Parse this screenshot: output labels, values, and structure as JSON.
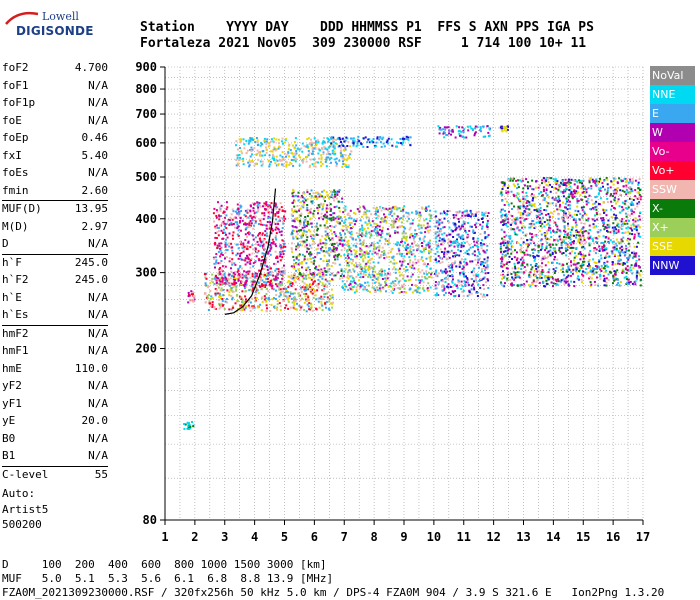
{
  "logo": {
    "line1": "Lowell",
    "line2": "DIGISONDE"
  },
  "header": {
    "labels": "Station    YYYY DAY    DDD HHMMSS P1  FFS S AXN PPS IGA PS",
    "values": "Fortaleza 2021 Nov05  309 230000 RSF     1 714 100 10+ 11"
  },
  "params": {
    "group1": [
      {
        "k": "foF2",
        "v": "4.700"
      },
      {
        "k": "foF1",
        "v": "N/A"
      },
      {
        "k": "foF1p",
        "v": "N/A"
      },
      {
        "k": "foE",
        "v": "N/A"
      },
      {
        "k": "foEp",
        "v": "0.46"
      },
      {
        "k": "fxI",
        "v": "5.40"
      },
      {
        "k": "foEs",
        "v": "N/A"
      },
      {
        "k": "fmin",
        "v": "2.60"
      }
    ],
    "group2": [
      {
        "k": "MUF(D)",
        "v": "13.95"
      },
      {
        "k": "M(D)",
        "v": "2.97"
      },
      {
        "k": "D",
        "v": "N/A"
      }
    ],
    "group3": [
      {
        "k": "h`F",
        "v": "245.0"
      },
      {
        "k": "h`F2",
        "v": "245.0"
      },
      {
        "k": "h`E",
        "v": "N/A"
      },
      {
        "k": "h`Es",
        "v": "N/A"
      }
    ],
    "group4": [
      {
        "k": "hmF2",
        "v": "N/A"
      },
      {
        "k": "hmF1",
        "v": "N/A"
      },
      {
        "k": "hmE",
        "v": "110.0"
      },
      {
        "k": "yF2",
        "v": "N/A"
      },
      {
        "k": "yF1",
        "v": "N/A"
      },
      {
        "k": "yE",
        "v": "20.0"
      },
      {
        "k": "B0",
        "v": "N/A"
      },
      {
        "k": "B1",
        "v": "N/A"
      }
    ],
    "group5": [
      {
        "k": "C-level",
        "v": "55"
      }
    ]
  },
  "auto": {
    "line1": "Auto:",
    "line2": "Artist5",
    "line3": "500200"
  },
  "legend": [
    {
      "label": "NoVal",
      "color": "#8c8c8c"
    },
    {
      "label": "NNE",
      "color": "#00d9f2"
    },
    {
      "label": "E",
      "color": "#3aa8f0"
    },
    {
      "label": "W",
      "color": "#b000b0"
    },
    {
      "label": "Vo-",
      "color": "#e8008c"
    },
    {
      "label": "Vo+",
      "color": "#ff0030"
    },
    {
      "label": "SSW",
      "color": "#f2b6b0"
    },
    {
      "label": "X-",
      "color": "#0a7a0a"
    },
    {
      "label": "X+",
      "color": "#9ccf5a"
    },
    {
      "label": "SSE",
      "color": "#e6d800"
    },
    {
      "label": "NNW",
      "color": "#2010d0"
    }
  ],
  "chart_data": {
    "type": "scatter",
    "title": "",
    "xlabel": "",
    "ylabel": "",
    "xlim": [
      1,
      17
    ],
    "ylim": [
      80,
      900
    ],
    "x_ticks": [
      "1",
      "2",
      "3",
      "4",
      "5",
      "6",
      "7",
      "8",
      "9",
      "10",
      "11",
      "12",
      "13",
      "14",
      "15",
      "16",
      "17"
    ],
    "y_ticks": [
      "80",
      "200",
      "300",
      "400",
      "500",
      "600",
      "700",
      "800",
      "900"
    ],
    "log_y": true,
    "grid": true,
    "legend_position": "right",
    "regions": [
      {
        "f": [
          1.7,
          1.95
        ],
        "h": [
          255,
          275
        ],
        "colors": [
          "SSW",
          "Vo+",
          "W"
        ]
      },
      {
        "f": [
          2.3,
          6.6
        ],
        "h": [
          245,
          300
        ],
        "colors": [
          "Vo+",
          "SSW",
          "E",
          "SSE",
          "X+"
        ]
      },
      {
        "f": [
          2.6,
          5.0
        ],
        "h": [
          280,
          440
        ],
        "colors": [
          "W",
          "Vo-",
          "Vo+",
          "SSW",
          "E"
        ]
      },
      {
        "f": [
          5.2,
          6.9
        ],
        "h": [
          290,
          470
        ],
        "colors": [
          "W",
          "SSW",
          "SSE",
          "X-",
          "E"
        ]
      },
      {
        "f": [
          6.9,
          9.9
        ],
        "h": [
          270,
          430
        ],
        "colors": [
          "SSE",
          "E",
          "W",
          "NNE",
          "SSW",
          "X+"
        ]
      },
      {
        "f": [
          10.0,
          11.8
        ],
        "h": [
          265,
          420
        ],
        "colors": [
          "E",
          "NNE",
          "NNW",
          "SSW",
          "W"
        ]
      },
      {
        "f": [
          12.2,
          16.9
        ],
        "h": [
          280,
          500
        ],
        "colors": [
          "NNW",
          "E",
          "NNE",
          "W",
          "SSW",
          "Vo-",
          "X-",
          "SSE"
        ]
      },
      {
        "f": [
          3.3,
          7.2
        ],
        "h": [
          530,
          620
        ],
        "colors": [
          "SSE",
          "SSW",
          "E",
          "NNE"
        ]
      },
      {
        "f": [
          6.5,
          9.2
        ],
        "h": [
          590,
          625
        ],
        "colors": [
          "NNW",
          "E",
          "NNE"
        ]
      },
      {
        "f": [
          10.1,
          11.9
        ],
        "h": [
          620,
          660
        ],
        "colors": [
          "NNE",
          "E",
          "W"
        ]
      },
      {
        "f": [
          12.2,
          12.45
        ],
        "h": [
          640,
          660
        ],
        "colors": [
          "SSE",
          "NNW"
        ]
      },
      {
        "f": [
          1.6,
          1.95
        ],
        "h": [
          130,
          136
        ],
        "colors": [
          "X-",
          "NNE"
        ]
      }
    ],
    "trace": {
      "f": [
        3.0,
        3.3,
        3.6,
        3.9,
        4.2,
        4.45,
        4.6,
        4.7
      ],
      "h": [
        240,
        242,
        250,
        265,
        300,
        345,
        395,
        470
      ]
    },
    "series_names": [
      "NoVal",
      "NNE",
      "E",
      "W",
      "Vo-",
      "Vo+",
      "SSW",
      "X-",
      "X+",
      "SSE",
      "NNW"
    ]
  },
  "footer": {
    "line1": "D     100  200  400  600  800 1000 1500 3000 [km]",
    "line2": "MUF   5.0  5.1  5.3  5.6  6.1  6.8  8.8 13.9 [MHz]",
    "line3": "FZA0M_2021309230000.RSF / 320fx256h 50 kHz 5.0 km / DPS-4 FZA0M 904 / 3.9 S 321.6 E   Ion2Png 1.3.20"
  }
}
